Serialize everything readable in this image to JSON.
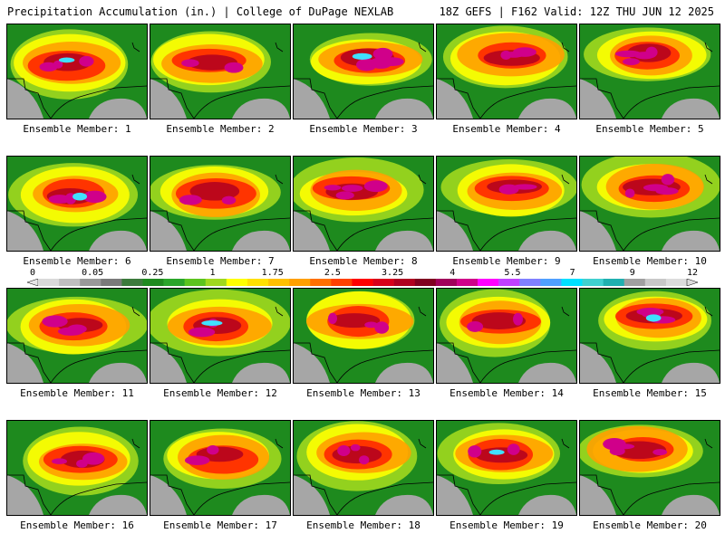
{
  "header": {
    "title_left": "Precipitation Accumulation (in.) | College of DuPage NEXLAB",
    "title_right": "18Z GEFS | F162 Valid: 12Z THU JUN 12 2025"
  },
  "colors": {
    "scale": [
      "#d9d9d9",
      "#bfbfbf",
      "#999999",
      "#7a7a7a",
      "#3c7a3c",
      "#1e8a1e",
      "#2aa52a",
      "#5cc41e",
      "#a0d81e",
      "#ffff00",
      "#ffe000",
      "#ffc000",
      "#ffa000",
      "#ff7000",
      "#ff4000",
      "#ff0000",
      "#d8001a",
      "#b00020",
      "#800020",
      "#a0005a",
      "#d0008a",
      "#ff00ff",
      "#c040ff",
      "#8080ff",
      "#4fa0ff",
      "#00e0ff",
      "#40d0d0",
      "#20b0b0",
      "#a0a0a0",
      "#c8c8c8",
      "#dcdcdc"
    ]
  },
  "colorbar": {
    "tick_labels": [
      "0",
      "0.05",
      "0.25",
      "1",
      "1.75",
      "2.5",
      "3.25",
      "4",
      "5.5",
      "7",
      "9",
      "12"
    ],
    "tick_values": [
      0,
      0.05,
      0.25,
      1,
      1.75,
      2.5,
      3.25,
      4,
      5.5,
      7,
      9,
      12
    ]
  },
  "panels": [
    {
      "label": "Ensemble Member: 1",
      "max_level": 7
    },
    {
      "label": "Ensemble Member: 2",
      "max_level": 4
    },
    {
      "label": "Ensemble Member: 3",
      "max_level": 7
    },
    {
      "label": "Ensemble Member: 4",
      "max_level": 5.5
    },
    {
      "label": "Ensemble Member: 5",
      "max_level": 5.5
    },
    {
      "label": "Ensemble Member: 6",
      "max_level": 7
    },
    {
      "label": "Ensemble Member: 7",
      "max_level": 5.5
    },
    {
      "label": "Ensemble Member: 8",
      "max_level": 5.5
    },
    {
      "label": "Ensemble Member: 9",
      "max_level": 5.5
    },
    {
      "label": "Ensemble Member: 10",
      "max_level": 5.5
    },
    {
      "label": "Ensemble Member: 11",
      "max_level": 5.5
    },
    {
      "label": "Ensemble Member: 12",
      "max_level": 7
    },
    {
      "label": "Ensemble Member: 13",
      "max_level": 5.5
    },
    {
      "label": "Ensemble Member: 14",
      "max_level": 5.5
    },
    {
      "label": "Ensemble Member: 15",
      "max_level": 7
    },
    {
      "label": "Ensemble Member: 16",
      "max_level": 5.5
    },
    {
      "label": "Ensemble Member: 17",
      "max_level": 5.5
    },
    {
      "label": "Ensemble Member: 18",
      "max_level": 5.5
    },
    {
      "label": "Ensemble Member: 19",
      "max_level": 7
    },
    {
      "label": "Ensemble Member: 20",
      "max_level": 5.5
    }
  ]
}
